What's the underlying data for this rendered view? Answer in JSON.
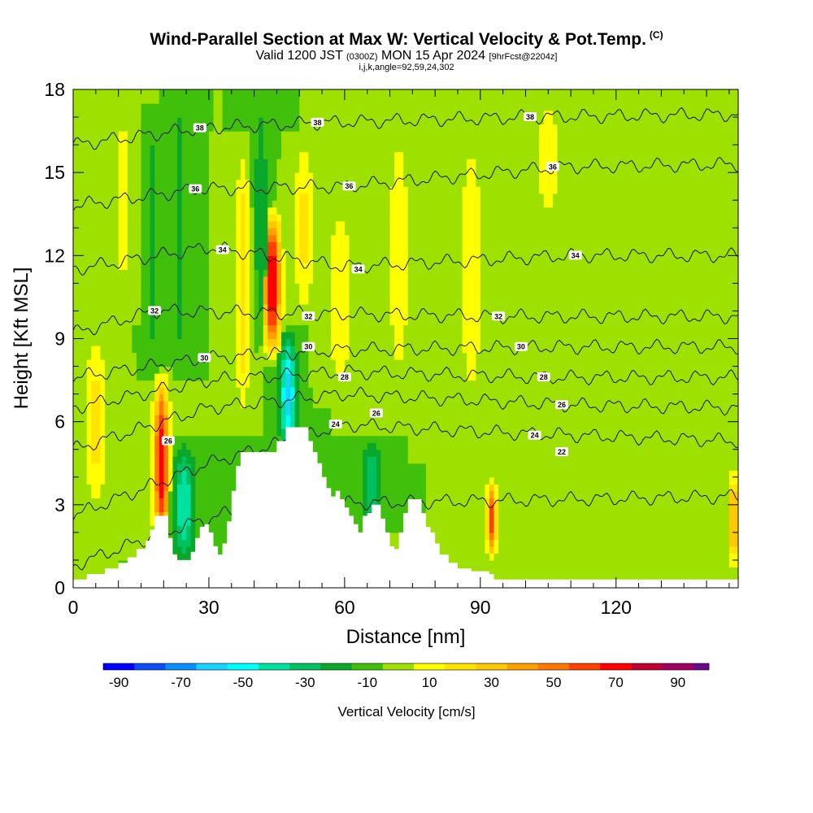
{
  "title": {
    "main": "Wind-Parallel Section at Max W: Vertical Velocity & Pot.Temp.",
    "main_tag": "(C)",
    "valid_prefix": "Valid 1200 JST",
    "valid_utc": "(0300Z)",
    "valid_date": "MON 15 Apr 2024",
    "forecast_tag": "[9hrFcst@2204z]",
    "params": "i,j,k,angle=92,59,24,302"
  },
  "chart_data": {
    "type": "heatmap",
    "xlabel": "Distance [nm]",
    "ylabel": "Height [Kft MSL]",
    "xlim": [
      0,
      147
    ],
    "ylim": [
      0,
      18
    ],
    "x_ticks": [
      0,
      30,
      60,
      90,
      120
    ],
    "y_ticks": [
      0,
      3,
      6,
      9,
      12,
      15,
      18
    ],
    "background_value_cm_s": -5,
    "colorbar": {
      "title": "Vertical Velocity [cm/s]",
      "tick_labels": [
        -90,
        -70,
        -50,
        -30,
        -10,
        10,
        30,
        50,
        70,
        90
      ],
      "range": [
        -95,
        100
      ],
      "bins": [
        {
          "from": -95,
          "to": -85,
          "color": "#0000ff"
        },
        {
          "from": -85,
          "to": -75,
          "color": "#0a4ff5"
        },
        {
          "from": -75,
          "to": -65,
          "color": "#0a8fff"
        },
        {
          "from": -65,
          "to": -55,
          "color": "#18d3ff"
        },
        {
          "from": -55,
          "to": -45,
          "color": "#00ffff"
        },
        {
          "from": -45,
          "to": -35,
          "color": "#00e0a0"
        },
        {
          "from": -35,
          "to": -25,
          "color": "#00c060"
        },
        {
          "from": -25,
          "to": -15,
          "color": "#0aa82a"
        },
        {
          "from": -15,
          "to": -5,
          "color": "#40c00a"
        },
        {
          "from": -5,
          "to": 5,
          "color": "#9ee000"
        },
        {
          "from": 5,
          "to": 15,
          "color": "#ffff00"
        },
        {
          "from": 15,
          "to": 25,
          "color": "#ffe400"
        },
        {
          "from": 25,
          "to": 35,
          "color": "#ffc800"
        },
        {
          "from": 35,
          "to": 45,
          "color": "#ffa000"
        },
        {
          "from": 45,
          "to": 55,
          "color": "#ff7800"
        },
        {
          "from": 55,
          "to": 65,
          "color": "#ff4000"
        },
        {
          "from": 65,
          "to": 75,
          "color": "#ff0000"
        },
        {
          "from": 75,
          "to": 85,
          "color": "#c00030"
        },
        {
          "from": 85,
          "to": 95,
          "color": "#a00060"
        },
        {
          "from": 95,
          "to": 100,
          "color": "#6a0a8a"
        }
      ]
    },
    "velocity_features": [
      {
        "x": 19.5,
        "y_from": 1.5,
        "y_to": 7.5,
        "value": 75,
        "half_width_nm": 1.6
      },
      {
        "x": 44,
        "y_from": 8.5,
        "y_to": 13.5,
        "value": 80,
        "half_width_nm": 1.8
      },
      {
        "x": 47.5,
        "y_from": 5.0,
        "y_to": 9.0,
        "value": -60,
        "half_width_nm": 1.8
      },
      {
        "x": 24.5,
        "y_from": 1.0,
        "y_to": 5.0,
        "value": -45,
        "half_width_nm": 2.4
      },
      {
        "x": 92.5,
        "y_from": 1.5,
        "y_to": 3.5,
        "value": 65,
        "half_width_nm": 1.0
      },
      {
        "x": 66,
        "y_from": 2.5,
        "y_to": 5.0,
        "value": -35,
        "half_width_nm": 2.0
      },
      {
        "x": 17.5,
        "y_from": 8.0,
        "y_to": 17.0,
        "value": -25,
        "half_width_nm": 1.2
      },
      {
        "x": 23.5,
        "y_from": 8.0,
        "y_to": 18.0,
        "value": -25,
        "half_width_nm": 1.2
      },
      {
        "x": 41.5,
        "y_from": 9.0,
        "y_to": 18.0,
        "value": -25,
        "half_width_nm": 1.4
      },
      {
        "x": 37.5,
        "y_from": 6.0,
        "y_to": 16.0,
        "value": 25,
        "half_width_nm": 1.5
      },
      {
        "x": 51,
        "y_from": 10.0,
        "y_to": 16.0,
        "value": 20,
        "half_width_nm": 2.0
      },
      {
        "x": 59,
        "y_from": 7.0,
        "y_to": 14.0,
        "value": 15,
        "half_width_nm": 2.5
      },
      {
        "x": 5,
        "y_from": 3.0,
        "y_to": 9.0,
        "value": 20,
        "half_width_nm": 2.5
      },
      {
        "x": 72,
        "y_from": 6.0,
        "y_to": 18.0,
        "value": 10,
        "half_width_nm": 3.0
      },
      {
        "x": 88,
        "y_from": 5.0,
        "y_to": 18.0,
        "value": 10,
        "half_width_nm": 3.5
      },
      {
        "x": 105,
        "y_from": 13.0,
        "y_to": 18.0,
        "value": 10,
        "half_width_nm": 3.0
      },
      {
        "x": 146,
        "y_from": 1.0,
        "y_to": 4.0,
        "value": 40,
        "half_width_nm": 1.2
      },
      {
        "x": 11,
        "y_from": 10.0,
        "y_to": 18.0,
        "value": 10,
        "half_width_nm": 2.0
      }
    ],
    "theta_contours": [
      {
        "value": 22,
        "y_at": [
          [
            0,
            0.8
          ],
          [
            20,
            2.0
          ],
          [
            40,
            3.0
          ],
          [
            147,
            3.3
          ]
        ]
      },
      {
        "value": 24,
        "y_at": [
          [
            0,
            2.6
          ],
          [
            30,
            4.5
          ],
          [
            60,
            5.9
          ],
          [
            95,
            5.6
          ],
          [
            147,
            5.3
          ]
        ]
      },
      {
        "value": 26,
        "y_at": [
          [
            0,
            5.0
          ],
          [
            30,
            6.5
          ],
          [
            60,
            7.0
          ],
          [
            110,
            6.6
          ],
          [
            147,
            6.5
          ]
        ]
      },
      {
        "value": 28,
        "y_at": [
          [
            0,
            6.5
          ],
          [
            30,
            7.5
          ],
          [
            60,
            7.8
          ],
          [
            105,
            7.6
          ],
          [
            147,
            7.6
          ]
        ]
      },
      {
        "value": 30,
        "y_at": [
          [
            0,
            7.6
          ],
          [
            30,
            8.3
          ],
          [
            60,
            8.6
          ],
          [
            105,
            8.7
          ],
          [
            147,
            8.7
          ]
        ]
      },
      {
        "value": 32,
        "y_at": [
          [
            0,
            9.2
          ],
          [
            18,
            10.0
          ],
          [
            55,
            9.9
          ],
          [
            95,
            9.8
          ],
          [
            147,
            9.8
          ]
        ]
      },
      {
        "value": 34,
        "y_at": [
          [
            0,
            11.5
          ],
          [
            30,
            12.3
          ],
          [
            60,
            11.6
          ],
          [
            110,
            12.0
          ],
          [
            147,
            12.0
          ]
        ]
      },
      {
        "value": 36,
        "y_at": [
          [
            0,
            13.8
          ],
          [
            28,
            14.4
          ],
          [
            60,
            14.5
          ],
          [
            108,
            15.2
          ],
          [
            147,
            15.3
          ]
        ]
      },
      {
        "value": 38,
        "y_at": [
          [
            0,
            16.0
          ],
          [
            28,
            16.6
          ],
          [
            55,
            16.8
          ],
          [
            100,
            17.0
          ],
          [
            147,
            17.1
          ]
        ]
      }
    ],
    "contour_labels": [
      {
        "text": "22",
        "x": 108,
        "y": 4.9
      },
      {
        "text": "24",
        "x": 58,
        "y": 5.9
      },
      {
        "text": "24",
        "x": 102,
        "y": 5.5
      },
      {
        "text": "26",
        "x": 21,
        "y": 5.3
      },
      {
        "text": "26",
        "x": 67,
        "y": 6.3
      },
      {
        "text": "26",
        "x": 108,
        "y": 6.6
      },
      {
        "text": "28",
        "x": 60,
        "y": 7.6
      },
      {
        "text": "28",
        "x": 104,
        "y": 7.6
      },
      {
        "text": "30",
        "x": 29,
        "y": 8.3
      },
      {
        "text": "30",
        "x": 52,
        "y": 8.7
      },
      {
        "text": "30",
        "x": 99,
        "y": 8.7
      },
      {
        "text": "32",
        "x": 18,
        "y": 10.0
      },
      {
        "text": "32",
        "x": 52,
        "y": 9.8
      },
      {
        "text": "32",
        "x": 94,
        "y": 9.8
      },
      {
        "text": "34",
        "x": 33,
        "y": 12.2
      },
      {
        "text": "34",
        "x": 63,
        "y": 11.5
      },
      {
        "text": "34",
        "x": 111,
        "y": 12.0
      },
      {
        "text": "36",
        "x": 27,
        "y": 14.4
      },
      {
        "text": "36",
        "x": 61,
        "y": 14.5
      },
      {
        "text": "36",
        "x": 106,
        "y": 15.2
      },
      {
        "text": "38",
        "x": 28,
        "y": 16.6
      },
      {
        "text": "38",
        "x": 54,
        "y": 16.8
      },
      {
        "text": "38",
        "x": 101,
        "y": 17.0
      }
    ],
    "terrain_kft": [
      [
        0,
        0.3
      ],
      [
        3,
        0.5
      ],
      [
        7,
        0.7
      ],
      [
        10,
        0.9
      ],
      [
        12,
        1.1
      ],
      [
        14,
        1.4
      ],
      [
        16,
        1.7
      ],
      [
        17,
        2.1
      ],
      [
        18,
        2.6
      ],
      [
        20,
        2.6
      ],
      [
        21,
        1.8
      ],
      [
        22,
        1.2
      ],
      [
        23,
        1.0
      ],
      [
        25,
        1.0
      ],
      [
        26,
        1.3
      ],
      [
        27,
        1.8
      ],
      [
        28,
        2.2
      ],
      [
        29,
        2.3
      ],
      [
        30,
        2.0
      ],
      [
        31,
        1.5
      ],
      [
        32,
        1.2
      ],
      [
        33,
        1.6
      ],
      [
        34,
        2.4
      ],
      [
        35,
        3.5
      ],
      [
        36,
        4.4
      ],
      [
        37,
        4.9
      ],
      [
        43,
        4.9
      ],
      [
        45,
        5.3
      ],
      [
        47,
        5.8
      ],
      [
        51,
        5.8
      ],
      [
        52,
        5.3
      ],
      [
        53,
        4.9
      ],
      [
        54,
        4.5
      ],
      [
        55,
        4.0
      ],
      [
        56,
        3.6
      ],
      [
        57,
        3.3
      ],
      [
        58,
        3.5
      ],
      [
        59,
        3.2
      ],
      [
        60,
        2.9
      ],
      [
        61,
        2.6
      ],
      [
        62,
        2.3
      ],
      [
        63,
        2.0
      ],
      [
        64,
        2.6
      ],
      [
        65,
        2.7
      ],
      [
        66,
        3.0
      ],
      [
        67,
        3.0
      ],
      [
        68,
        2.5
      ],
      [
        69,
        2.0
      ],
      [
        70,
        1.5
      ],
      [
        71,
        1.4
      ],
      [
        72,
        2.0
      ],
      [
        73,
        2.7
      ],
      [
        74,
        3.2
      ],
      [
        76,
        3.2
      ],
      [
        77,
        2.7
      ],
      [
        78,
        2.2
      ],
      [
        79,
        2.0
      ],
      [
        80,
        1.6
      ],
      [
        81,
        1.2
      ],
      [
        83,
        0.9
      ],
      [
        85,
        0.7
      ],
      [
        88,
        0.6
      ],
      [
        92,
        0.5
      ],
      [
        93,
        0.3
      ],
      [
        147,
        0.3
      ]
    ]
  },
  "colors": {
    "terrain_fill": "#ffffff",
    "contour_line": "#000000",
    "frame": "#000000"
  }
}
